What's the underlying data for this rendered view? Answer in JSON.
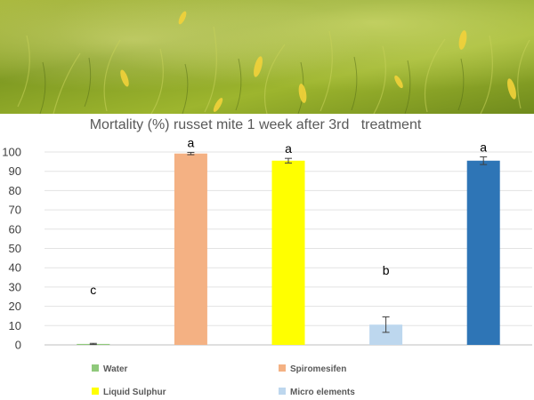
{
  "chart_data": {
    "type": "bar",
    "title": "Mortality (%) russet mite 1 week after 3rd   treatment",
    "categories": [
      "Water",
      "Spiromesifen",
      "Liquid Sulphur",
      "Micro elements",
      ""
    ],
    "values": [
      0.5,
      99.2,
      95.5,
      10.5,
      95.5
    ],
    "errors": [
      0.3,
      0.6,
      1.2,
      4.0,
      2.0
    ],
    "significance_letters": [
      "c",
      "a",
      "a",
      "b",
      "a"
    ],
    "colors": [
      "#8fc97b",
      "#f4b183",
      "#ffff00",
      "#bdd7ee",
      "#2e75b6"
    ],
    "ylim": [
      0,
      100
    ],
    "yticks": [
      0,
      10,
      20,
      30,
      40,
      50,
      60,
      70,
      80,
      90,
      100
    ],
    "grid": true,
    "xlabel": "",
    "ylabel": "",
    "legend": [
      {
        "label": "Water",
        "color": "#8fc97b"
      },
      {
        "label": "Spiromesifen",
        "color": "#f4b183"
      },
      {
        "label": "Liquid Sulphur",
        "color": "#ffff00"
      },
      {
        "label": "Micro elements",
        "color": "#bdd7ee"
      }
    ],
    "legend_placement": "bottom"
  }
}
